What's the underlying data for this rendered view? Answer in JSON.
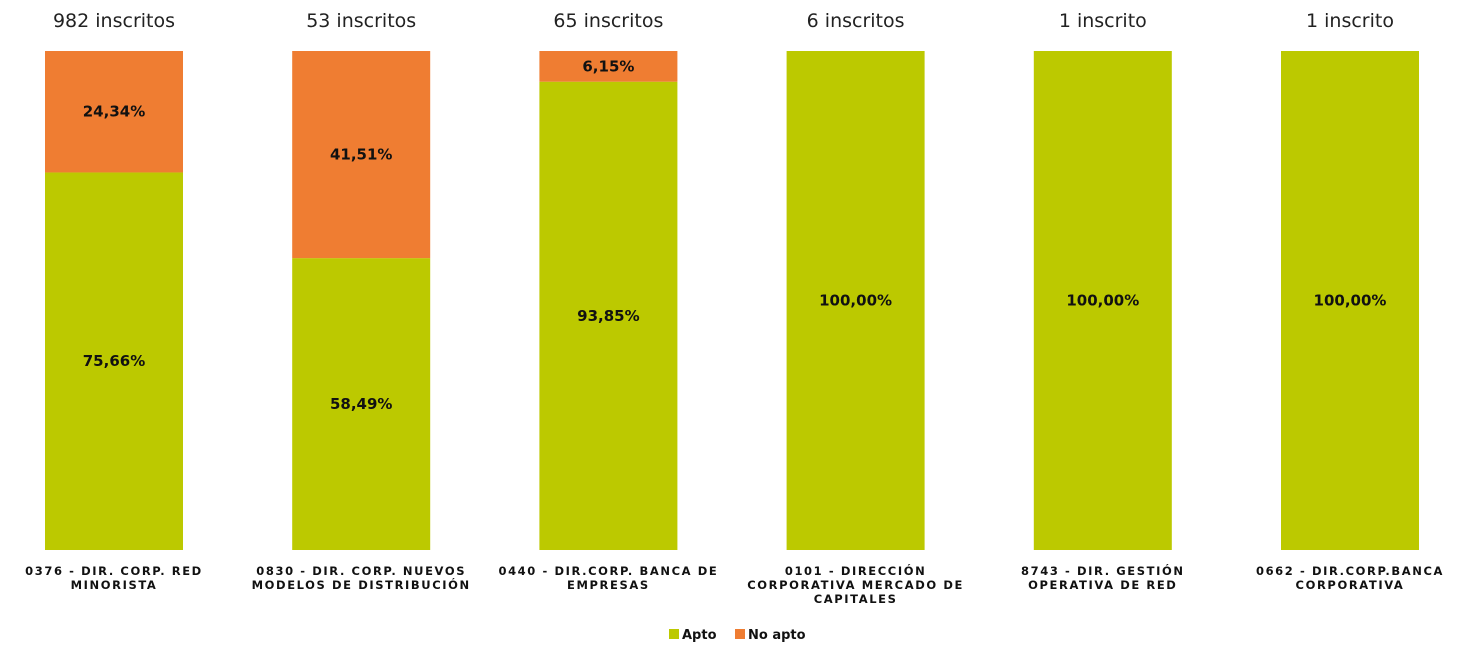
{
  "chart_data": {
    "type": "bar",
    "stacked": true,
    "percent": true,
    "ylim": [
      0,
      100
    ],
    "grid": false,
    "legend_position": "bottom-center",
    "categories": [
      [
        "0376 - DIR. CORP. RED",
        "MINORISTA"
      ],
      [
        "0830 - DIR. CORP. NUEVOS",
        "MODELOS DE DISTRIBUCIÓN"
      ],
      [
        "0440 - DIR.CORP. BANCA DE",
        "EMPRESAS"
      ],
      [
        "0101 - DIRECCIÓN",
        "CORPORATIVA MERCADO DE",
        "CAPITALES"
      ],
      [
        "8743 - DIR. GESTIÓN",
        "OPERATIVA DE RED"
      ],
      [
        "0662 - DIR.CORP.BANCA",
        "CORPORATIVA"
      ]
    ],
    "enrollment_labels": [
      "982 inscritos",
      "53 inscritos",
      "65 inscritos",
      "6 inscritos",
      "1 inscrito",
      "1 inscrito"
    ],
    "series": [
      {
        "name": "Apto",
        "color": "#bcc900",
        "values": [
          75.66,
          58.49,
          93.85,
          100,
          100,
          100
        ],
        "labels": [
          "75,66%",
          "58,49%",
          "93,85%",
          "100,00%",
          "100,00%",
          "100,00%"
        ]
      },
      {
        "name": "No apto",
        "color": "#ef7d32",
        "values": [
          24.34,
          41.51,
          6.15,
          0,
          0,
          0
        ],
        "labels": [
          "24,34%",
          "41,51%",
          "6,15%",
          "",
          "",
          ""
        ]
      }
    ]
  }
}
